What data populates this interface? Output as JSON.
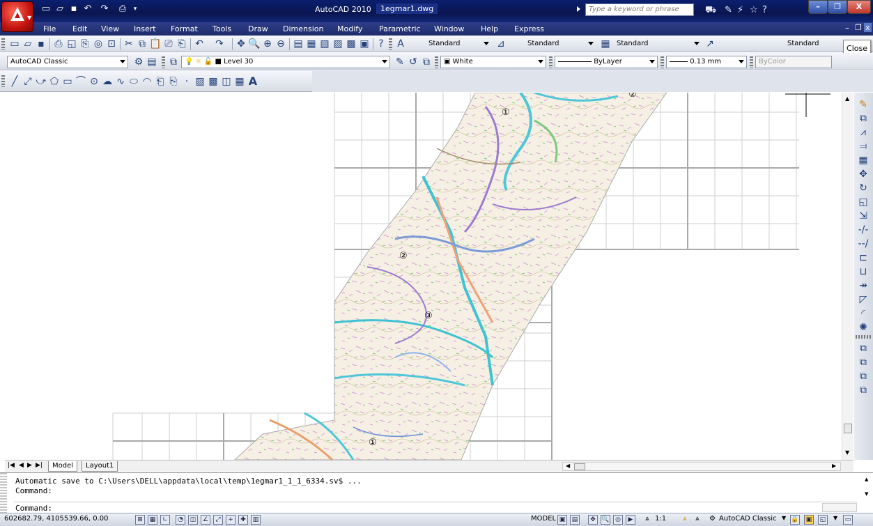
{
  "titlebar": {
    "app_title": "AutoCAD 2010",
    "file_name": "1egmar1.dwg",
    "search_placeholder": "Type a keyword or phrase",
    "minimize": "–",
    "restore": "❐",
    "close": "X"
  },
  "menubar": {
    "items": [
      "File",
      "Edit",
      "View",
      "Insert",
      "Format",
      "Tools",
      "Draw",
      "Dimension",
      "Modify",
      "Parametric",
      "Window",
      "Help",
      "Express"
    ]
  },
  "toolbar1": {
    "text_style": "Standard",
    "dim_style": "Standard",
    "table_style": "Standard",
    "mleader_style": "Standard"
  },
  "toolbar2": {
    "workspace": "AutoCAD Classic",
    "layer": "Level 30",
    "color": "White",
    "linetype": "ByLayer",
    "lineweight": "0.13 mm",
    "plotstyle": "ByColor"
  },
  "tooltip": {
    "close": "Close"
  },
  "drawing": {
    "markers": [
      "①",
      "②",
      "③",
      "①",
      "②"
    ]
  },
  "tabs": {
    "model": "Model",
    "layout1": "Layout1"
  },
  "command": {
    "line1": "Automatic save to C:\\Users\\DELL\\appdata\\local\\temp\\1egmar1_1_1_6334.sv$ ...",
    "line2": "Command:",
    "line3": "Command:"
  },
  "status": {
    "coords": "602682.79, 4105539.66, 0.00",
    "model": "MODEL",
    "annoscale": "1:1",
    "workspace": "AutoCAD Classic"
  },
  "colors": {
    "title_bg": "#0b1f6e",
    "menu_bg": "#1e2c6c",
    "app_red": "#c4140f"
  }
}
